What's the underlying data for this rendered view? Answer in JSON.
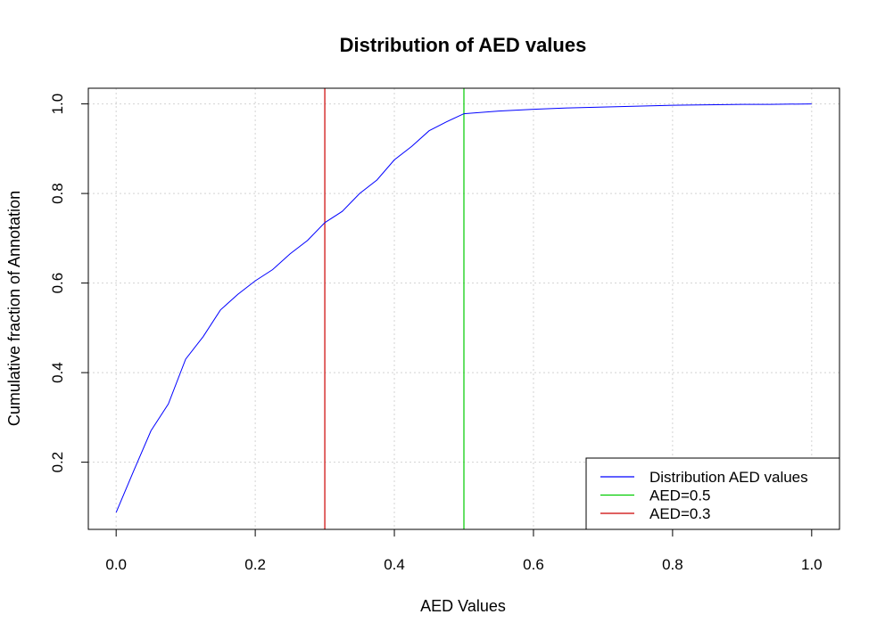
{
  "chart_data": {
    "type": "line",
    "title": "Distribution of AED values",
    "xlabel": "AED Values",
    "ylabel": "Cumulative fraction of Annotation",
    "xlim": [
      -0.04,
      1.04
    ],
    "ylim": [
      0.05,
      1.035
    ],
    "x_ticks": [
      0.0,
      0.2,
      0.4,
      0.6,
      0.8,
      1.0
    ],
    "x_tick_labels": [
      "0.0",
      "0.2",
      "0.4",
      "0.6",
      "0.8",
      "1.0"
    ],
    "y_ticks": [
      0.2,
      0.4,
      0.6,
      0.8,
      1.0
    ],
    "y_tick_labels": [
      "0.2",
      "0.4",
      "0.6",
      "0.8",
      "1.0"
    ],
    "grid": true,
    "legend_position": "bottom-right",
    "series": [
      {
        "name": "Distribution AED values",
        "color": "#0000ff",
        "x": [
          0.0,
          0.025,
          0.05,
          0.075,
          0.1,
          0.125,
          0.15,
          0.175,
          0.2,
          0.225,
          0.25,
          0.275,
          0.3,
          0.325,
          0.35,
          0.375,
          0.4,
          0.425,
          0.45,
          0.475,
          0.5,
          0.55,
          0.6,
          0.65,
          0.7,
          0.75,
          0.8,
          0.85,
          0.9,
          0.94,
          1.0
        ],
        "values": [
          0.088,
          0.18,
          0.27,
          0.33,
          0.43,
          0.48,
          0.54,
          0.575,
          0.605,
          0.63,
          0.665,
          0.695,
          0.735,
          0.76,
          0.8,
          0.83,
          0.875,
          0.905,
          0.94,
          0.96,
          0.978,
          0.984,
          0.988,
          0.991,
          0.993,
          0.995,
          0.997,
          0.998,
          0.999,
          0.999,
          1.0
        ]
      }
    ],
    "vlines": [
      {
        "name": "AED=0.5",
        "x": 0.5,
        "color": "#00cc00"
      },
      {
        "name": "AED=0.3",
        "x": 0.3,
        "color": "#cc0000"
      }
    ]
  }
}
